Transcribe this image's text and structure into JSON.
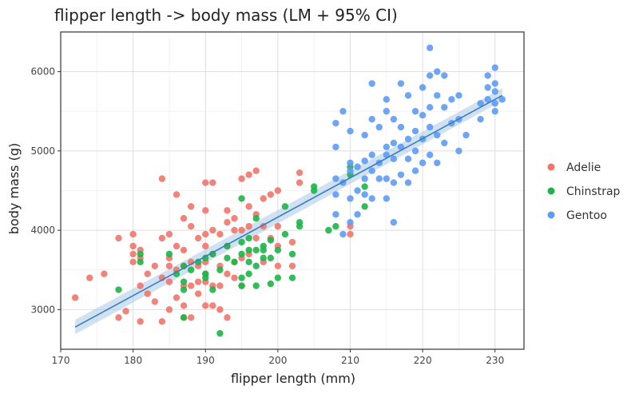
{
  "chart_data": {
    "type": "scatter",
    "title": "flipper length -> body mass (LM + 95% CI)",
    "xlabel": "flipper length (mm)",
    "ylabel": "body mass (g)",
    "xlim": [
      170,
      234
    ],
    "ylim": [
      2500,
      6500
    ],
    "xticks": [
      170,
      180,
      190,
      200,
      210,
      220,
      230
    ],
    "yticks": [
      3000,
      4000,
      5000,
      6000
    ],
    "grid": true,
    "legend_position": "right",
    "colors": {
      "Adelie": "#F0756B",
      "Chinstrap": "#1DB548",
      "Gentoo": "#5E9BF4",
      "fit_line": "#3A7EC0",
      "ci_band": "#A9C8E8"
    },
    "series": [
      {
        "name": "Adelie",
        "points": [
          [
            172,
            3150
          ],
          [
            174,
            3400
          ],
          [
            176,
            3450
          ],
          [
            178,
            2900
          ],
          [
            178,
            3900
          ],
          [
            179,
            2980
          ],
          [
            180,
            3600
          ],
          [
            180,
            3700
          ],
          [
            180,
            3800
          ],
          [
            180,
            3950
          ],
          [
            181,
            2850
          ],
          [
            181,
            3300
          ],
          [
            181,
            3650
          ],
          [
            181,
            3750
          ],
          [
            182,
            3200
          ],
          [
            182,
            3450
          ],
          [
            183,
            3550
          ],
          [
            183,
            3100
          ],
          [
            184,
            2850
          ],
          [
            184,
            3400
          ],
          [
            184,
            3900
          ],
          [
            184,
            4650
          ],
          [
            185,
            3000
          ],
          [
            185,
            3350
          ],
          [
            185,
            3550
          ],
          [
            185,
            3950
          ],
          [
            185,
            3650
          ],
          [
            186,
            3150
          ],
          [
            186,
            3500
          ],
          [
            186,
            3800
          ],
          [
            186,
            4450
          ],
          [
            187,
            2900
          ],
          [
            187,
            3050
          ],
          [
            187,
            3300
          ],
          [
            187,
            3550
          ],
          [
            187,
            3750
          ],
          [
            187,
            4150
          ],
          [
            188,
            2900
          ],
          [
            188,
            3300
          ],
          [
            188,
            3600
          ],
          [
            188,
            4050
          ],
          [
            188,
            4300
          ],
          [
            189,
            3200
          ],
          [
            189,
            3350
          ],
          [
            189,
            3550
          ],
          [
            189,
            3900
          ],
          [
            190,
            3050
          ],
          [
            190,
            3350
          ],
          [
            190,
            3450
          ],
          [
            190,
            3600
          ],
          [
            190,
            3800
          ],
          [
            190,
            3950
          ],
          [
            190,
            4250
          ],
          [
            190,
            4600
          ],
          [
            191,
            3050
          ],
          [
            191,
            3300
          ],
          [
            191,
            3700
          ],
          [
            191,
            4000
          ],
          [
            191,
            4600
          ],
          [
            192,
            3000
          ],
          [
            192,
            3300
          ],
          [
            192,
            3550
          ],
          [
            192,
            3950
          ],
          [
            193,
            2900
          ],
          [
            193,
            3450
          ],
          [
            193,
            3800
          ],
          [
            193,
            4100
          ],
          [
            193,
            4250
          ],
          [
            194,
            3400
          ],
          [
            194,
            3600
          ],
          [
            194,
            4000
          ],
          [
            194,
            4150
          ],
          [
            195,
            3300
          ],
          [
            195,
            3650
          ],
          [
            195,
            4000
          ],
          [
            195,
            4650
          ],
          [
            196,
            3700
          ],
          [
            196,
            4050
          ],
          [
            196,
            4300
          ],
          [
            196,
            4700
          ],
          [
            197,
            3900
          ],
          [
            197,
            4200
          ],
          [
            197,
            4750
          ],
          [
            198,
            3600
          ],
          [
            198,
            4050
          ],
          [
            198,
            4400
          ],
          [
            199,
            3900
          ],
          [
            199,
            4450
          ],
          [
            200,
            3550
          ],
          [
            200,
            3800
          ],
          [
            200,
            4050
          ],
          [
            200,
            4500
          ],
          [
            202,
            3550
          ],
          [
            202,
            3850
          ],
          [
            203,
            4600
          ],
          [
            203,
            4725
          ],
          [
            210,
            3950
          ],
          [
            210,
            4050
          ]
        ]
      },
      {
        "name": "Chinstrap",
        "points": [
          [
            178,
            3250
          ],
          [
            181,
            3600
          ],
          [
            181,
            3700
          ],
          [
            185,
            3700
          ],
          [
            186,
            3450
          ],
          [
            187,
            2900
          ],
          [
            187,
            3250
          ],
          [
            187,
            3350
          ],
          [
            187,
            3550
          ],
          [
            188,
            3500
          ],
          [
            189,
            3600
          ],
          [
            190,
            3400
          ],
          [
            190,
            3450
          ],
          [
            190,
            3650
          ],
          [
            191,
            3250
          ],
          [
            191,
            3700
          ],
          [
            192,
            2700
          ],
          [
            192,
            3500
          ],
          [
            193,
            3650
          ],
          [
            193,
            3800
          ],
          [
            194,
            3600
          ],
          [
            195,
            3300
          ],
          [
            195,
            3400
          ],
          [
            195,
            3700
          ],
          [
            195,
            3850
          ],
          [
            195,
            4400
          ],
          [
            196,
            3450
          ],
          [
            196,
            3600
          ],
          [
            196,
            3750
          ],
          [
            196,
            3900
          ],
          [
            197,
            3300
          ],
          [
            197,
            3550
          ],
          [
            197,
            3750
          ],
          [
            197,
            4150
          ],
          [
            198,
            3650
          ],
          [
            198,
            3750
          ],
          [
            198,
            3800
          ],
          [
            199,
            3325
          ],
          [
            199,
            3650
          ],
          [
            199,
            3875
          ],
          [
            200,
            3400
          ],
          [
            200,
            3750
          ],
          [
            201,
            3950
          ],
          [
            201,
            4300
          ],
          [
            202,
            3400
          ],
          [
            202,
            3700
          ],
          [
            203,
            4050
          ],
          [
            203,
            4100
          ],
          [
            205,
            4500
          ],
          [
            205,
            4550
          ],
          [
            207,
            4000
          ],
          [
            208,
            4050
          ],
          [
            210,
            4700
          ],
          [
            210,
            4800
          ],
          [
            212,
            4300
          ],
          [
            212,
            4550
          ]
        ]
      },
      {
        "name": "Gentoo",
        "points": [
          [
            208,
            4200
          ],
          [
            208,
            4450
          ],
          [
            208,
            4650
          ],
          [
            208,
            5050
          ],
          [
            208,
            5350
          ],
          [
            209,
            3950
          ],
          [
            209,
            4600
          ],
          [
            209,
            5500
          ],
          [
            210,
            4100
          ],
          [
            210,
            4400
          ],
          [
            210,
            4750
          ],
          [
            210,
            4850
          ],
          [
            210,
            5250
          ],
          [
            211,
            4200
          ],
          [
            211,
            4500
          ],
          [
            211,
            4800
          ],
          [
            212,
            4450
          ],
          [
            212,
            4650
          ],
          [
            212,
            4875
          ],
          [
            212,
            5200
          ],
          [
            213,
            4400
          ],
          [
            213,
            4750
          ],
          [
            213,
            4950
          ],
          [
            213,
            5400
          ],
          [
            213,
            5850
          ],
          [
            214,
            4650
          ],
          [
            214,
            4850
          ],
          [
            214,
            5300
          ],
          [
            215,
            4400
          ],
          [
            215,
            4650
          ],
          [
            215,
            4950
          ],
          [
            215,
            5050
          ],
          [
            215,
            5500
          ],
          [
            215,
            5650
          ],
          [
            216,
            4100
          ],
          [
            216,
            4600
          ],
          [
            216,
            4900
          ],
          [
            216,
            5100
          ],
          [
            216,
            5400
          ],
          [
            217,
            4700
          ],
          [
            217,
            5050
          ],
          [
            217,
            5300
          ],
          [
            217,
            5850
          ],
          [
            218,
            4600
          ],
          [
            218,
            4900
          ],
          [
            218,
            5150
          ],
          [
            218,
            5700
          ],
          [
            219,
            4750
          ],
          [
            219,
            5000
          ],
          [
            219,
            5250
          ],
          [
            219,
            5500
          ],
          [
            220,
            4850
          ],
          [
            220,
            5150
          ],
          [
            220,
            5450
          ],
          [
            220,
            5800
          ],
          [
            221,
            4950
          ],
          [
            221,
            5300
          ],
          [
            221,
            5550
          ],
          [
            221,
            5950
          ],
          [
            221,
            6300
          ],
          [
            222,
            4850
          ],
          [
            222,
            5200
          ],
          [
            222,
            5700
          ],
          [
            222,
            6000
          ],
          [
            223,
            5100
          ],
          [
            223,
            5550
          ],
          [
            223,
            5950
          ],
          [
            224,
            5350
          ],
          [
            224,
            5650
          ],
          [
            225,
            5000
          ],
          [
            225,
            5400
          ],
          [
            225,
            5700
          ],
          [
            226,
            5200
          ],
          [
            228,
            5400
          ],
          [
            228,
            5600
          ],
          [
            229,
            5650
          ],
          [
            229,
            5800
          ],
          [
            229,
            5950
          ],
          [
            230,
            5500
          ],
          [
            230,
            5600
          ],
          [
            230,
            5750
          ],
          [
            230,
            5850
          ],
          [
            230,
            6050
          ],
          [
            231,
            5650
          ]
        ]
      }
    ],
    "fit": {
      "method": "LM",
      "x": [
        172,
        231
      ],
      "y": [
        2780,
        5700
      ],
      "ci_low": [
        2690,
        5630
      ],
      "ci_high": [
        2870,
        5790
      ]
    }
  }
}
